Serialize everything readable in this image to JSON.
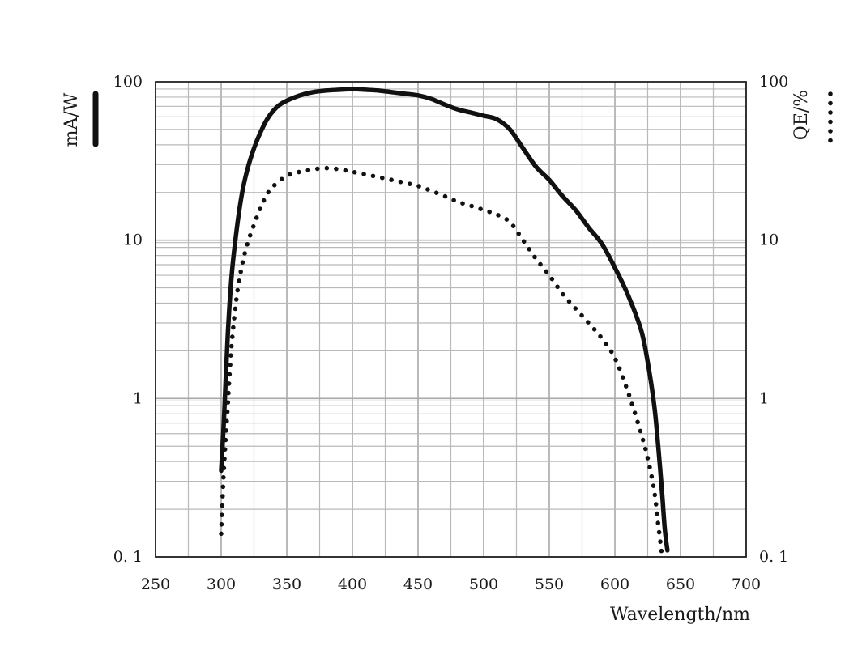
{
  "chart_data": {
    "type": "line",
    "title": "",
    "xlabel": "Wavelength/nm",
    "ylabel_left": "mA/W",
    "ylabel_right": "QE/%",
    "xlim": [
      250,
      700
    ],
    "x_ticks": [
      "250",
      "300",
      "350",
      "400",
      "450",
      "500",
      "550",
      "600",
      "650",
      "700"
    ],
    "yscale": "log",
    "ylim": [
      0.1,
      100
    ],
    "y_ticks": [
      "0.1",
      "1",
      "10",
      "100"
    ],
    "y_ticks_left": [
      "0. 1",
      "1",
      "10",
      "100"
    ],
    "y_ticks_right": [
      "0. 1",
      "1",
      "10",
      "100"
    ],
    "grid": true,
    "legend": "axis-labels",
    "colors": {
      "line": "#111111",
      "grid": "#a8a8a8",
      "text": "#1a1a1a"
    },
    "series": [
      {
        "name": "mA/W",
        "style": "solid",
        "axis": "left",
        "x": [
          300,
          302,
          305,
          308,
          312,
          316,
          320,
          325,
          330,
          335,
          340,
          345,
          350,
          360,
          370,
          380,
          390,
          400,
          410,
          420,
          430,
          440,
          450,
          460,
          470,
          480,
          490,
          500,
          510,
          520,
          530,
          540,
          550,
          560,
          570,
          580,
          590,
          600,
          610,
          620,
          625,
          630,
          633,
          636,
          638,
          640
        ],
        "y": [
          0.35,
          0.7,
          2.5,
          6,
          12,
          20,
          28,
          38,
          48,
          58,
          66,
          72,
          76,
          82,
          86,
          88,
          89,
          90,
          89,
          88,
          86,
          84,
          82,
          78,
          72,
          67,
          64,
          61,
          58,
          50,
          38,
          29,
          24,
          19,
          15.5,
          12,
          9.5,
          6.7,
          4.5,
          2.7,
          1.7,
          0.9,
          0.5,
          0.25,
          0.15,
          0.11
        ]
      },
      {
        "name": "QE/%",
        "style": "dotted",
        "axis": "right",
        "x": [
          300,
          302,
          305,
          308,
          312,
          316,
          320,
          325,
          330,
          335,
          340,
          350,
          360,
          370,
          380,
          390,
          400,
          410,
          420,
          430,
          440,
          450,
          460,
          470,
          480,
          490,
          500,
          510,
          520,
          530,
          540,
          550,
          560,
          570,
          580,
          590,
          600,
          610,
          620,
          625,
          630,
          633,
          636
        ],
        "y": [
          0.14,
          0.35,
          0.9,
          2.2,
          4.5,
          7,
          9.5,
          12.5,
          16,
          19.5,
          22,
          25.5,
          27,
          28,
          28.5,
          28,
          27,
          26,
          25,
          24,
          23,
          22,
          20.5,
          19,
          17.5,
          16.5,
          15.5,
          14.5,
          13,
          10,
          7.6,
          6,
          4.6,
          3.7,
          3,
          2.4,
          1.8,
          1.1,
          0.6,
          0.42,
          0.26,
          0.16,
          0.1
        ]
      }
    ]
  }
}
